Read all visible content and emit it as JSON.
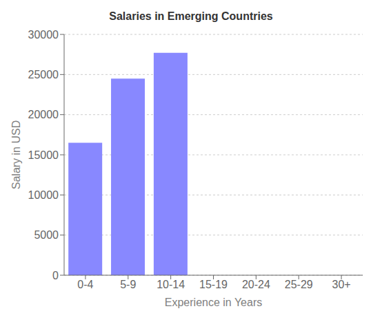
{
  "chart_data": {
    "type": "bar",
    "title": "Salaries in Emerging Countries",
    "xlabel": "Experience in Years",
    "ylabel": "Salary in USD",
    "categories": [
      "0-4",
      "5-9",
      "10-14",
      "15-19",
      "20-24",
      "25-29",
      "30+"
    ],
    "values": [
      16500,
      24500,
      27700,
      0,
      0,
      0,
      0
    ],
    "color": "#8888ff",
    "ylim": [
      0,
      30000
    ],
    "yticks": [
      0,
      5000,
      10000,
      15000,
      20000,
      25000,
      30000
    ],
    "grid": true
  }
}
